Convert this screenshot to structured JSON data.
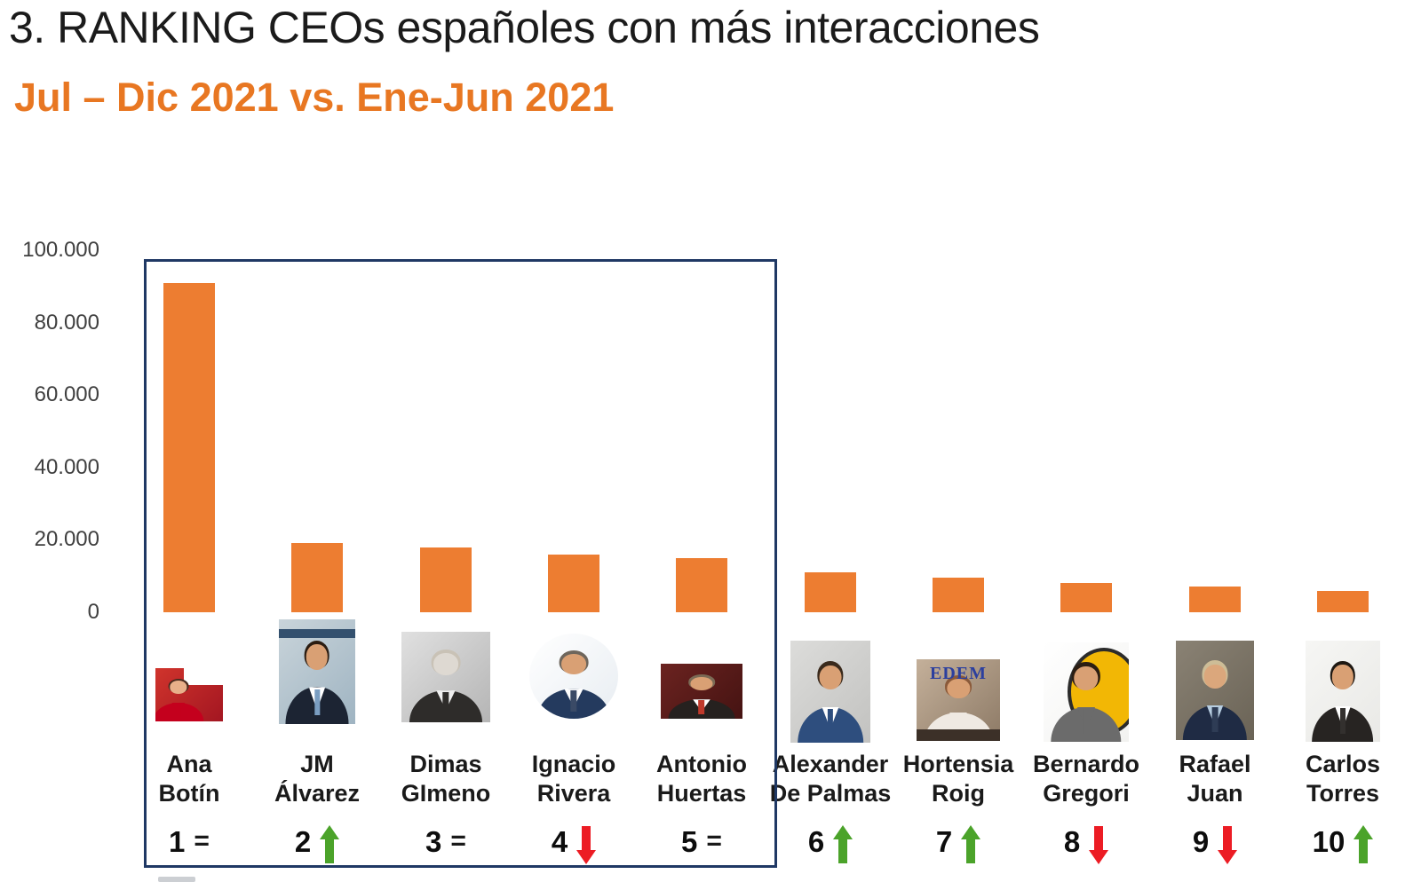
{
  "title": "3. RANKING CEOs españoles con más interacciones",
  "subtitle": "Jul – Dic 2021 vs. Ene-Jun 2021",
  "colors": {
    "bar": "#ED7D31",
    "frame": "#1F3864",
    "subtitle": "#E87722",
    "up": "#4BA32A",
    "down": "#EC1C24",
    "equal": "#1A1A1A"
  },
  "chart_data": {
    "type": "bar",
    "title": "Ranking CEOs españoles con más interacciones, Jul–Dic 2021 vs. Ene-Jun 2021",
    "categories": [
      "Ana Botín",
      "JM Álvarez",
      "Dimas GImeno",
      "Ignacio Rivera",
      "Antonio Huertas",
      "Alexander De Palmas",
      "Hortensia Roig",
      "Bernardo Gregori",
      "Rafael Juan",
      "Carlos Torres"
    ],
    "values": [
      91000,
      19000,
      18000,
      16000,
      15000,
      11000,
      9500,
      8000,
      7000,
      6000
    ],
    "xlabel": "",
    "ylabel": "",
    "ylim": [
      0,
      100000
    ],
    "ytick_labels": [
      "100.000",
      "80.000",
      "60.000",
      "40.000",
      "20.000",
      "0"
    ],
    "grid": false,
    "legend": "none",
    "bar_color": "#ED7D31",
    "annotation": "Top 5 enclosed in a navy rectangle; each CEO shows rank number with up/down/equal trend vs previous semester"
  },
  "ceos": [
    {
      "rank": "1",
      "trend": "same",
      "trend_symbol": "=",
      "name_line1": "Ana",
      "name_line2": "Botín",
      "value": 91000,
      "photo_palette": {
        "bg1": "#d0342c",
        "bg2": "#a31621",
        "skin": "#e8b08a",
        "hair": "#4a2c20",
        "suit": "#c4001d",
        "shirt": "#c4001d",
        "tie": "#c4001d",
        "extra": "#ffffff"
      }
    },
    {
      "rank": "2",
      "trend": "up",
      "name_line1": "JM",
      "name_line2": "Álvarez",
      "value": 19000,
      "photo_palette": {
        "bg1": "#c9d4da",
        "bg2": "#9fb4c2",
        "skin": "#d9a074",
        "hair": "#2b1d12",
        "suit": "#1c2433",
        "shirt": "#ffffff",
        "tie": "#7a9ec2",
        "extra": "#33506e"
      }
    },
    {
      "rank": "3",
      "trend": "same",
      "trend_symbol": "=",
      "name_line1": "Dimas",
      "name_line2": "GImeno",
      "value": 18000,
      "photo_palette": {
        "bg1": "#e0e0e0",
        "bg2": "#b5b5b5",
        "skin": "#ded9d2",
        "hair": "#c9c2b6",
        "suit": "#2e2c2a",
        "shirt": "#efefef",
        "tie": "#2e2c2a"
      }
    },
    {
      "rank": "4",
      "trend": "down",
      "name_line1": "Ignacio",
      "name_line2": "Rivera",
      "value": 16000,
      "photo_palette": {
        "bg1": "#ffffff",
        "bg2": "#e8edf2",
        "skin": "#d9a074",
        "hair": "#6e665c",
        "suit": "#243a5e",
        "shirt": "#ffffff",
        "tie": "#3a4a66"
      }
    },
    {
      "rank": "5",
      "trend": "same",
      "trend_symbol": "=",
      "name_line1": "Antonio",
      "name_line2": "Huertas",
      "value": 15000,
      "photo_palette": {
        "bg1": "#6b2320",
        "bg2": "#451312",
        "skin": "#d9a074",
        "hair": "#7a6a55",
        "suit": "#26211f",
        "shirt": "#ffffff",
        "tie": "#c0392b"
      }
    },
    {
      "rank": "6",
      "trend": "up",
      "name_line1": "Alexander",
      "name_line2": "De Palmas",
      "value": 11000,
      "photo_palette": {
        "bg1": "#dcdcda",
        "bg2": "#c2c2c0",
        "skin": "#d9a074",
        "hair": "#3a2a1c",
        "suit": "#2e4e7e",
        "shirt": "#ffffff",
        "tie": "#2e4e7e"
      }
    },
    {
      "rank": "7",
      "trend": "up",
      "name_line1": "Hortensia",
      "name_line2": "Roig",
      "value": 9500,
      "photo_text": "EDEM",
      "photo_palette": {
        "bg1": "#c4b09a",
        "bg2": "#8d7a66",
        "skin": "#d9a074",
        "hair": "#8a5a3a",
        "suit": "#efe9e2",
        "shirt": "#efe9e2",
        "tie": "#2b3f9e",
        "extra": "#3c3028"
      }
    },
    {
      "rank": "8",
      "trend": "down",
      "name_line1": "Bernardo",
      "name_line2": "Gregori",
      "value": 8000,
      "photo_palette": {
        "bg1": "#ffffff",
        "bg2": "#f2f2f0",
        "skin": "#d9a074",
        "hair": "#2b1d12",
        "suit": "#6b6b6b",
        "shirt": "#6b6b6b",
        "tie": "#6b6b6b",
        "extra": "#f2b705"
      }
    },
    {
      "rank": "9",
      "trend": "down",
      "name_line1": "Rafael",
      "name_line2": "Juan",
      "value": 7000,
      "photo_palette": {
        "bg1": "#8a8274",
        "bg2": "#6a6356",
        "skin": "#dba77c",
        "hair": "#cdbd97",
        "suit": "#1f2b44",
        "shirt": "#b7cde0",
        "tie": "#2e3c55"
      }
    },
    {
      "rank": "10",
      "trend": "up",
      "name_line1": "Carlos",
      "name_line2": "Torres",
      "value": 6000,
      "photo_palette": {
        "bg1": "#f6f6f4",
        "bg2": "#e9e9e6",
        "skin": "#d9a074",
        "hair": "#1e1812",
        "suit": "#272422",
        "shirt": "#ffffff",
        "tie": "#33302e"
      }
    }
  ]
}
